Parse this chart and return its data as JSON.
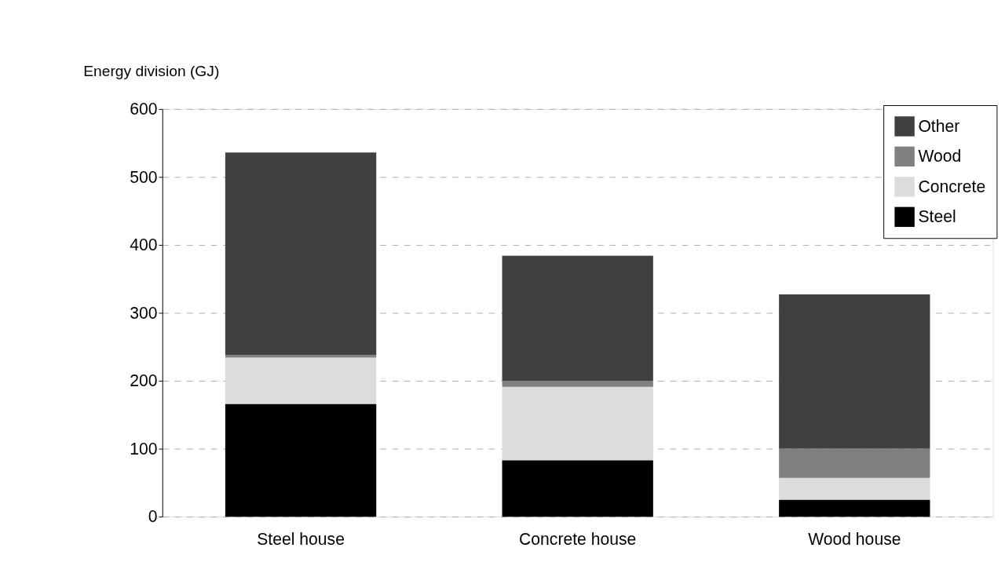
{
  "chart_data": {
    "type": "bar",
    "ylabel": "Energy division (GJ)",
    "categories": [
      "Steel house",
      "Concrete house",
      "Wood house"
    ],
    "stacked": true,
    "series": [
      {
        "name": "Steel",
        "color": "#000000",
        "values": [
          166,
          83,
          25
        ]
      },
      {
        "name": "Concrete",
        "color": "#dcdcdc",
        "values": [
          68,
          108,
          32
        ]
      },
      {
        "name": "Wood",
        "color": "#808080",
        "values": [
          4,
          9,
          43
        ]
      },
      {
        "name": "Other",
        "color": "#404040",
        "values": [
          298,
          184,
          227
        ]
      }
    ],
    "ylim": [
      0,
      600
    ],
    "yticks": [
      0,
      100,
      200,
      300,
      400,
      500,
      600
    ],
    "grid": "y",
    "legend": "top right"
  }
}
